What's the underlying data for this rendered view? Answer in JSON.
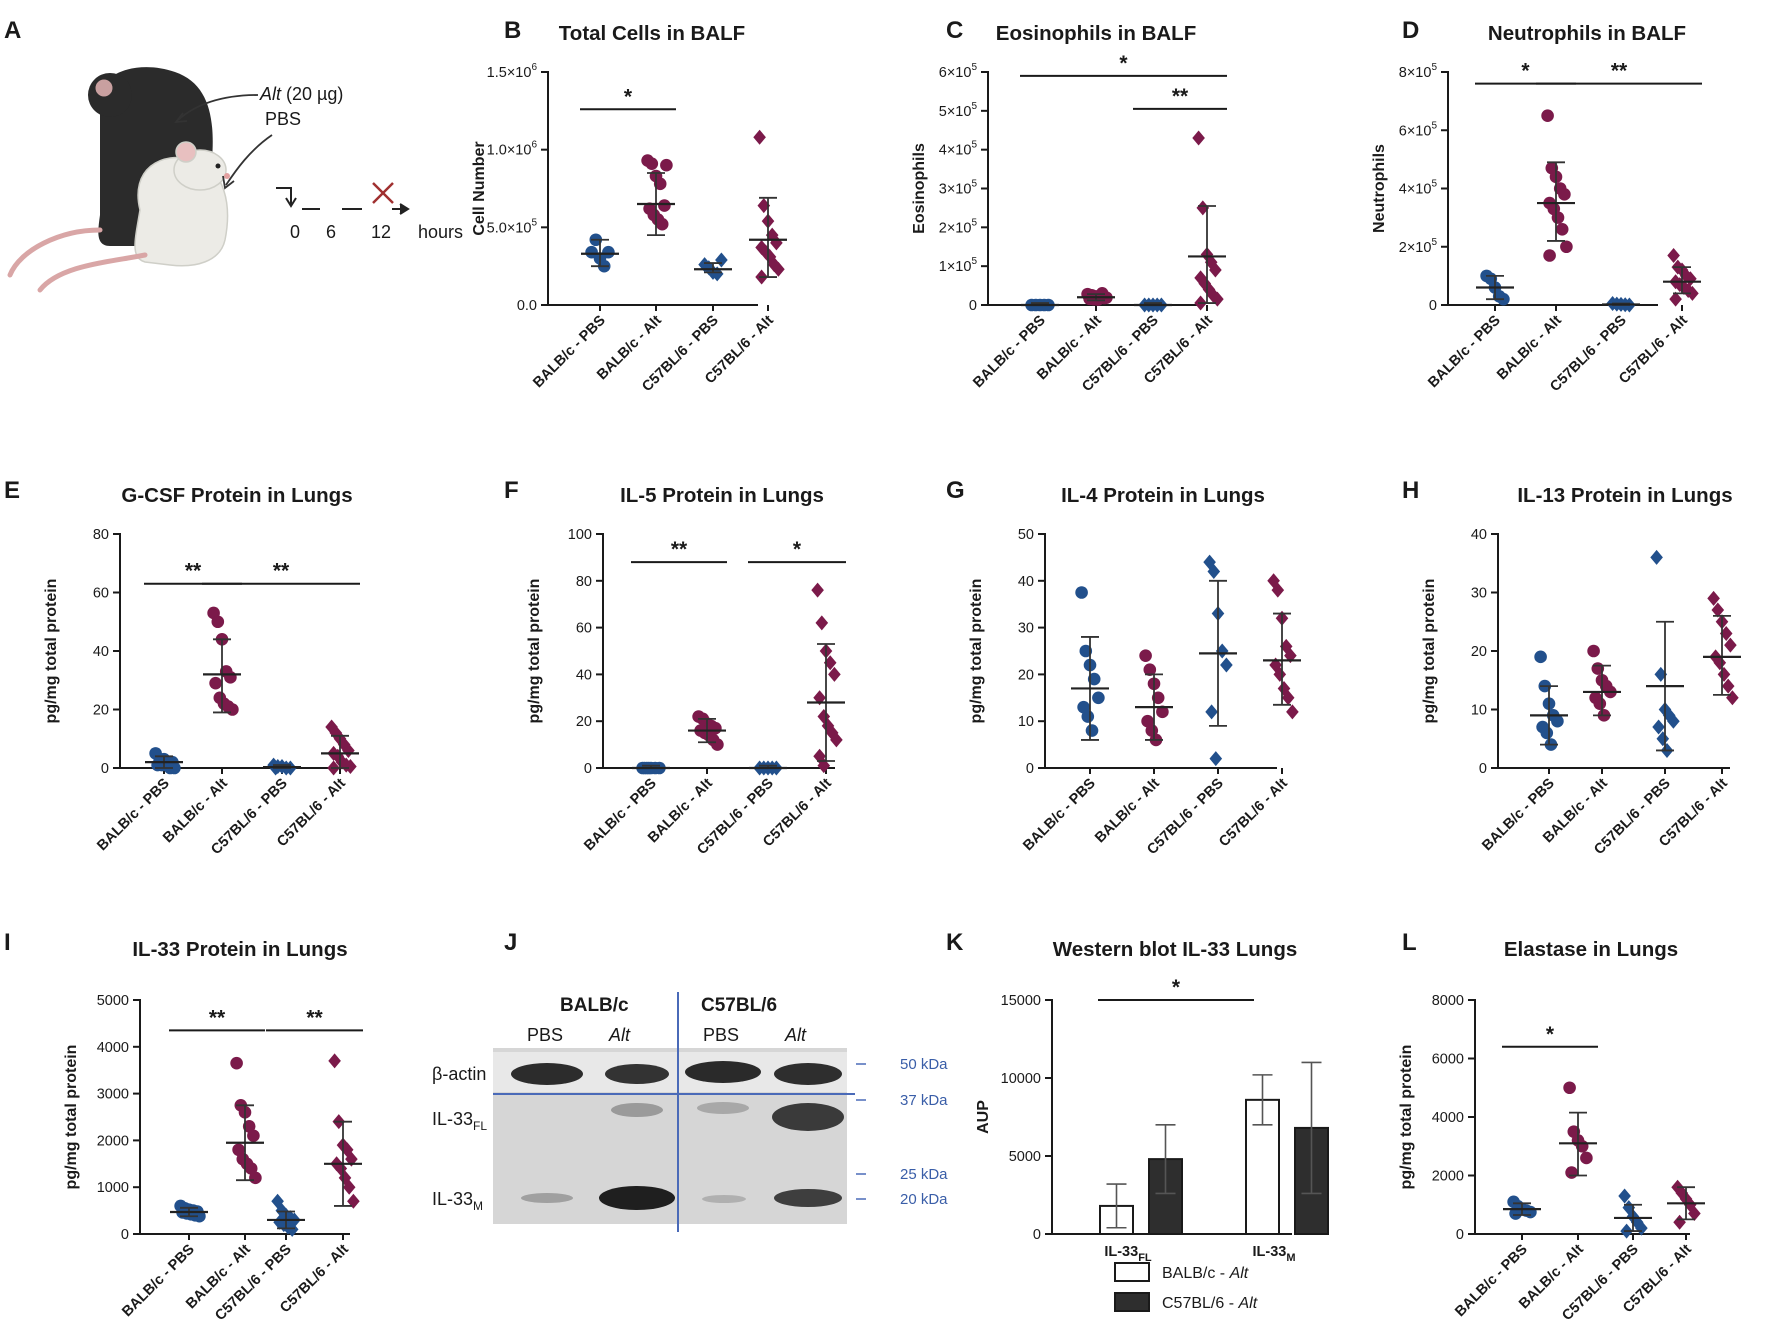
{
  "colors": {
    "blue": "#22508c",
    "maroon": "#7b1a4a",
    "axis": "#1a1a1a",
    "divider": "#4a6ab8"
  },
  "panel_labels": [
    "A",
    "B",
    "C",
    "D",
    "E",
    "F",
    "G",
    "H",
    "I",
    "J",
    "K",
    "L"
  ],
  "schematic": {
    "dose_prefix": "Alt",
    "dose_suffix": " (20 µg)",
    "control": "PBS",
    "timeline": [
      "0",
      "6",
      "12"
    ],
    "unit": "hours",
    "icons": [
      "black-mouse-icon",
      "white-mouse-icon",
      "sacrifice-x-icon"
    ]
  },
  "western_blot": {
    "strain_1": "BALB/c",
    "strain_2": "C57BL/6",
    "lane_labels": [
      "PBS",
      "Alt",
      "PBS",
      "Alt"
    ],
    "row_beta_actin": "β-actin",
    "row_il33fl": "IL-33",
    "row_il33fl_sub": "FL",
    "row_il33m": "IL-33",
    "row_il33m_sub": "M",
    "markers": [
      "50 kDa",
      "37 kDa",
      "25 kDa",
      "20 kDa"
    ]
  },
  "chart_data": [
    {
      "id": "B",
      "type": "scatter",
      "title": "Total Cells in BALF",
      "ylabel": "Cell Number",
      "ylim": [
        0,
        1500000
      ],
      "yticks": [
        {
          "v": 0,
          "t": "0.0"
        },
        {
          "v": 500000,
          "b": "5.0×10",
          "e": "5"
        },
        {
          "v": 1000000,
          "b": "1.0×10",
          "e": "6"
        },
        {
          "v": 1500000,
          "b": "1.5×10",
          "e": "6"
        }
      ],
      "categories": [
        "BALB/c - PBS",
        "BALB/c - Alt",
        "C57BL/6 - PBS",
        "C57BL/6 - Alt"
      ],
      "markers": [
        "circle",
        "circle",
        "diamond",
        "diamond"
      ],
      "colors": [
        "blue",
        "maroon",
        "blue",
        "maroon"
      ],
      "points": [
        [
          340000,
          420000,
          300000,
          250000,
          340000
        ],
        [
          930000,
          910000,
          830000,
          780000,
          640000,
          620000,
          580000,
          550000,
          520000,
          900000
        ],
        [
          260000,
          240000,
          210000,
          200000,
          290000
        ],
        [
          1080000,
          640000,
          540000,
          450000,
          400000,
          370000,
          340000,
          310000,
          260000,
          230000,
          180000
        ]
      ],
      "mean": [
        330000,
        650000,
        230000,
        420000
      ],
      "sd": [
        [
          250000,
          420000
        ],
        [
          450000,
          850000
        ],
        [
          210000,
          270000
        ],
        [
          180000,
          690000
        ]
      ],
      "sig": [
        {
          "from": 0,
          "to": 1,
          "label": "*",
          "y": 1260000
        }
      ]
    },
    {
      "id": "C",
      "type": "scatter",
      "title": "Eosinophils in BALF",
      "ylabel": "Eosinophils",
      "ylim": [
        0,
        600000
      ],
      "yticks": [
        {
          "v": 0,
          "t": "0"
        },
        {
          "v": 100000,
          "b": "1×10",
          "e": "5"
        },
        {
          "v": 200000,
          "b": "2×10",
          "e": "5"
        },
        {
          "v": 300000,
          "b": "3×10",
          "e": "5"
        },
        {
          "v": 400000,
          "b": "4×10",
          "e": "5"
        },
        {
          "v": 500000,
          "b": "5×10",
          "e": "5"
        },
        {
          "v": 600000,
          "b": "6×10",
          "e": "5"
        }
      ],
      "categories": [
        "BALB/c - PBS",
        "BALB/c - Alt",
        "C57BL/6 - PBS",
        "C57BL/6 - Alt"
      ],
      "markers": [
        "circle",
        "circle",
        "diamond",
        "diamond"
      ],
      "colors": [
        "blue",
        "maroon",
        "blue",
        "maroon"
      ],
      "points": [
        [
          0,
          0,
          0,
          0,
          0
        ],
        [
          28000,
          25000,
          22000,
          20000,
          18000,
          16000,
          15000,
          14000,
          30000,
          19000
        ],
        [
          0,
          0,
          0,
          0,
          0
        ],
        [
          430000,
          250000,
          130000,
          110000,
          90000,
          70000,
          55000,
          40000,
          25000,
          15000,
          5000
        ]
      ],
      "mean": [
        0,
        20000,
        0,
        125000
      ],
      "sd": [
        [
          0,
          5000
        ],
        [
          12000,
          28000
        ],
        [
          0,
          5000
        ],
        [
          5000,
          255000
        ]
      ],
      "sig": [
        {
          "from": 0,
          "to": 3,
          "label": "*",
          "y": 590000
        },
        {
          "from": 2,
          "to": 3,
          "label": "**",
          "y": 505000
        }
      ]
    },
    {
      "id": "D",
      "type": "scatter",
      "title": "Neutrophils in BALF",
      "ylabel": "Neutrophils",
      "ylim": [
        0,
        800000
      ],
      "yticks": [
        {
          "v": 0,
          "t": "0"
        },
        {
          "v": 200000,
          "b": "2×10",
          "e": "5"
        },
        {
          "v": 400000,
          "b": "4×10",
          "e": "5"
        },
        {
          "v": 600000,
          "b": "6×10",
          "e": "5"
        },
        {
          "v": 800000,
          "b": "8×10",
          "e": "5"
        }
      ],
      "categories": [
        "BALB/c - PBS",
        "BALB/c - Alt",
        "C57BL/6 - PBS",
        "C57BL/6 - Alt"
      ],
      "markers": [
        "circle",
        "circle",
        "diamond",
        "diamond"
      ],
      "colors": [
        "blue",
        "maroon",
        "blue",
        "maroon"
      ],
      "points": [
        [
          100000,
          90000,
          60000,
          30000,
          20000
        ],
        [
          650000,
          470000,
          440000,
          400000,
          380000,
          350000,
          330000,
          300000,
          260000,
          200000,
          170000
        ],
        [
          5000,
          3000,
          2000,
          1000,
          0
        ],
        [
          170000,
          130000,
          120000,
          100000,
          90000,
          80000,
          70000,
          60000,
          50000,
          40000,
          20000
        ]
      ],
      "mean": [
        60000,
        350000,
        2000,
        80000
      ],
      "sd": [
        [
          20000,
          100000
        ],
        [
          220000,
          490000
        ],
        [
          0,
          5000
        ],
        [
          40000,
          130000
        ]
      ],
      "sig": [
        {
          "from": 0,
          "to": 1,
          "label": "*",
          "y": 760000
        },
        {
          "from": 1,
          "to": 3,
          "label": "**",
          "y": 760000
        }
      ]
    },
    {
      "id": "E",
      "type": "scatter",
      "title": "G-CSF Protein in Lungs",
      "ylabel": "pg/mg total protein",
      "ylim": [
        0,
        80
      ],
      "yticks": [
        {
          "v": 0,
          "t": "0"
        },
        {
          "v": 20,
          "t": "20"
        },
        {
          "v": 40,
          "t": "40"
        },
        {
          "v": 60,
          "t": "60"
        },
        {
          "v": 80,
          "t": "80"
        }
      ],
      "categories": [
        "BALB/c - PBS",
        "BALB/c - Alt",
        "C57BL/6 - PBS",
        "C57BL/6 - Alt"
      ],
      "markers": [
        "circle",
        "circle",
        "diamond",
        "diamond"
      ],
      "colors": [
        "blue",
        "maroon",
        "blue",
        "maroon"
      ],
      "points": [
        [
          5,
          3,
          3,
          2,
          2,
          1,
          1,
          1,
          0,
          0
        ],
        [
          53,
          50,
          44,
          33,
          31,
          29,
          24,
          22,
          21,
          20
        ],
        [
          1,
          0.5,
          0.5,
          0,
          0,
          0
        ],
        [
          14,
          12,
          10,
          8,
          6,
          5,
          4,
          2,
          1,
          0.5,
          0
        ]
      ],
      "mean": [
        2,
        32,
        0.3,
        5
      ],
      "sd": [
        [
          0,
          4
        ],
        [
          19,
          44
        ],
        [
          0,
          1
        ],
        [
          0,
          11
        ]
      ],
      "sig": [
        {
          "from": 0,
          "to": 1,
          "label": "**",
          "y": 63
        },
        {
          "from": 1,
          "to": 3,
          "label": "**",
          "y": 63
        }
      ]
    },
    {
      "id": "F",
      "type": "scatter",
      "title": "IL-5 Protein in Lungs",
      "ylabel": "pg/mg total protein",
      "ylim": [
        0,
        100
      ],
      "yticks": [
        {
          "v": 0,
          "t": "0"
        },
        {
          "v": 20,
          "t": "20"
        },
        {
          "v": 40,
          "t": "40"
        },
        {
          "v": 60,
          "t": "60"
        },
        {
          "v": 80,
          "t": "80"
        },
        {
          "v": 100,
          "t": "100"
        }
      ],
      "categories": [
        "BALB/c - PBS",
        "BALB/c - Alt",
        "C57BL/6 - PBS",
        "C57BL/6 - Alt"
      ],
      "markers": [
        "circle",
        "circle",
        "diamond",
        "diamond"
      ],
      "colors": [
        "blue",
        "maroon",
        "blue",
        "maroon"
      ],
      "points": [
        [
          0,
          0,
          0,
          0,
          0,
          0,
          0
        ],
        [
          22,
          21,
          19,
          18,
          17,
          16,
          15,
          14,
          12,
          10
        ],
        [
          0,
          0,
          0,
          0,
          0
        ],
        [
          76,
          62,
          50,
          45,
          40,
          30,
          22,
          18,
          15,
          12,
          5,
          1
        ]
      ],
      "mean": [
        0,
        16,
        0,
        28
      ],
      "sd": [
        [
          0,
          1
        ],
        [
          11,
          21
        ],
        [
          0,
          1
        ],
        [
          3,
          53
        ]
      ],
      "sig": [
        {
          "from": 0,
          "to": 1,
          "label": "**",
          "y": 88
        },
        {
          "from": 2,
          "to": 3,
          "label": "*",
          "y": 88
        }
      ]
    },
    {
      "id": "G",
      "type": "scatter",
      "title": "IL-4 Protein in Lungs",
      "ylabel": "pg/mg total protein",
      "ylim": [
        0,
        50
      ],
      "yticks": [
        {
          "v": 0,
          "t": "0"
        },
        {
          "v": 10,
          "t": "10"
        },
        {
          "v": 20,
          "t": "20"
        },
        {
          "v": 30,
          "t": "30"
        },
        {
          "v": 40,
          "t": "40"
        },
        {
          "v": 50,
          "t": "50"
        }
      ],
      "categories": [
        "BALB/c - PBS",
        "BALB/c - Alt",
        "C57BL/6 - PBS",
        "C57BL/6 - Alt"
      ],
      "markers": [
        "circle",
        "circle",
        "diamond",
        "diamond"
      ],
      "colors": [
        "blue",
        "maroon",
        "blue",
        "maroon"
      ],
      "points": [
        [
          37.5,
          25,
          22,
          19,
          15,
          13,
          11,
          8
        ],
        [
          24,
          21,
          18,
          15,
          12,
          10,
          8,
          6
        ],
        [
          44,
          42,
          33,
          25,
          22,
          12,
          2
        ],
        [
          40,
          38,
          32,
          26,
          24,
          22,
          20,
          17,
          15,
          12
        ]
      ],
      "mean": [
        17,
        13,
        24.5,
        23
      ],
      "sd": [
        [
          6,
          28
        ],
        [
          6,
          20
        ],
        [
          9,
          40
        ],
        [
          13.5,
          33
        ]
      ],
      "sig": []
    },
    {
      "id": "H",
      "type": "scatter",
      "title": "IL-13 Protein in Lungs",
      "ylabel": "pg/mg total protein",
      "ylim": [
        0,
        40
      ],
      "yticks": [
        {
          "v": 0,
          "t": "0"
        },
        {
          "v": 10,
          "t": "10"
        },
        {
          "v": 20,
          "t": "20"
        },
        {
          "v": 30,
          "t": "30"
        },
        {
          "v": 40,
          "t": "40"
        }
      ],
      "categories": [
        "BALB/c - PBS",
        "BALB/c - Alt",
        "C57BL/6 - PBS",
        "C57BL/6 - Alt"
      ],
      "markers": [
        "circle",
        "circle",
        "diamond",
        "diamond"
      ],
      "colors": [
        "blue",
        "maroon",
        "blue",
        "maroon"
      ],
      "points": [
        [
          19,
          14,
          11,
          9,
          8,
          7,
          6,
          4
        ],
        [
          20,
          17,
          15,
          14,
          13,
          12,
          11,
          9
        ],
        [
          36,
          16,
          10,
          9,
          8,
          7,
          5,
          3
        ],
        [
          29,
          27,
          25,
          23,
          21,
          19,
          18,
          16,
          14,
          12
        ]
      ],
      "mean": [
        9,
        13,
        14,
        19
      ],
      "sd": [
        [
          4,
          14
        ],
        [
          9,
          17.5
        ],
        [
          3,
          25
        ],
        [
          12.5,
          26
        ]
      ],
      "sig": []
    },
    {
      "id": "I",
      "type": "scatter",
      "title": "IL-33 Protein in Lungs",
      "ylabel": "pg/mg total protein",
      "ylim": [
        0,
        5000
      ],
      "yticks": [
        {
          "v": 0,
          "t": "0"
        },
        {
          "v": 1000,
          "t": "1000"
        },
        {
          "v": 2000,
          "t": "2000"
        },
        {
          "v": 3000,
          "t": "3000"
        },
        {
          "v": 4000,
          "t": "4000"
        },
        {
          "v": 5000,
          "t": "5000"
        }
      ],
      "categories": [
        "BALB/c - PBS",
        "BALB/c - Alt",
        "C57BL/6 - PBS",
        "C57BL/6 - Alt"
      ],
      "markers": [
        "circle",
        "circle",
        "diamond",
        "diamond"
      ],
      "colors": [
        "blue",
        "maroon",
        "blue",
        "maroon"
      ],
      "points": [
        [
          600,
          550,
          520,
          500,
          480,
          460,
          440,
          420,
          400,
          380
        ],
        [
          3650,
          2750,
          2600,
          2300,
          2100,
          1800,
          1600,
          1500,
          1400,
          1200
        ],
        [
          700,
          500,
          400,
          350,
          300,
          250,
          200,
          150,
          100
        ],
        [
          3700,
          2400,
          1900,
          1800,
          1600,
          1500,
          1400,
          1200,
          1000,
          700
        ]
      ],
      "mean": [
        470,
        1950,
        300,
        1500
      ],
      "sd": [
        [
          380,
          560
        ],
        [
          1150,
          2750
        ],
        [
          120,
          480
        ],
        [
          600,
          2400
        ]
      ],
      "sig": [
        {
          "from": 0,
          "to": 1,
          "label": "**",
          "y": 4350
        },
        {
          "from": 2,
          "to": 3,
          "label": "**",
          "y": 4350
        }
      ]
    },
    {
      "id": "K",
      "type": "bar",
      "title": "Western blot IL-33 Lungs",
      "ylabel": "AUP",
      "ylim": [
        0,
        15000
      ],
      "yticks": [
        {
          "v": 0,
          "t": "0"
        },
        {
          "v": 5000,
          "t": "5000"
        },
        {
          "v": 10000,
          "t": "10000"
        },
        {
          "v": 15000,
          "t": "15000"
        }
      ],
      "groups": [
        {
          "main": "IL-33",
          "sub": "FL"
        },
        {
          "main": "IL-33",
          "sub": "M"
        }
      ],
      "series": [
        {
          "name": "BALB/c - ",
          "italic": "Alt",
          "fill": "white",
          "values": [
            1800,
            8600
          ],
          "err": [
            [
              400,
              3200
            ],
            [
              7000,
              10200
            ]
          ]
        },
        {
          "name": "C57BL/6 - ",
          "italic": "Alt",
          "fill": "dark",
          "values": [
            4800,
            6800
          ],
          "err": [
            [
              2600,
              7000
            ],
            [
              2600,
              11000
            ]
          ]
        }
      ],
      "sig": [
        {
          "label": "*",
          "y": 15000
        }
      ]
    },
    {
      "id": "L",
      "type": "scatter",
      "title": "Elastase in Lungs",
      "ylabel": "pg/mg total protein",
      "ylim": [
        0,
        8000
      ],
      "yticks": [
        {
          "v": 0,
          "t": "0"
        },
        {
          "v": 2000,
          "t": "2000"
        },
        {
          "v": 4000,
          "t": "4000"
        },
        {
          "v": 6000,
          "t": "6000"
        },
        {
          "v": 8000,
          "t": "8000"
        }
      ],
      "categories": [
        "BALB/c - PBS",
        "BALB/c - Alt",
        "C57BL/6 - PBS",
        "C57BL/6 - Alt"
      ],
      "markers": [
        "circle",
        "circle",
        "diamond",
        "diamond"
      ],
      "colors": [
        "blue",
        "maroon",
        "blue",
        "maroon"
      ],
      "points": [
        [
          1100,
          950,
          850,
          800,
          750,
          700
        ],
        [
          5000,
          3500,
          3200,
          3000,
          2600,
          2100
        ],
        [
          1300,
          900,
          600,
          400,
          200,
          100
        ],
        [
          1600,
          1400,
          1200,
          1000,
          700,
          400
        ]
      ],
      "mean": [
        850,
        3100,
        550,
        1050
      ],
      "sd": [
        [
          650,
          1050
        ],
        [
          2000,
          4150
        ],
        [
          100,
          1000
        ],
        [
          500,
          1600
        ]
      ],
      "sig": [
        {
          "from": 0,
          "to": 1,
          "label": "*",
          "y": 6400
        }
      ]
    }
  ]
}
